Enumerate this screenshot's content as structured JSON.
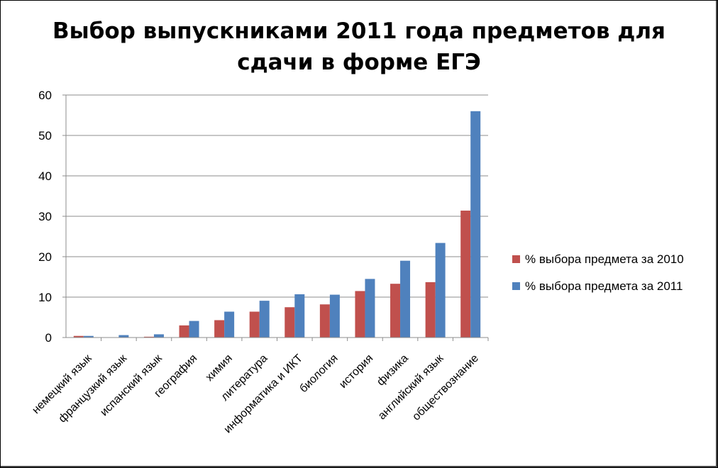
{
  "chart_data": {
    "type": "bar",
    "title_line1": "Выбор выпускниками 2011 года предметов для",
    "title_line2": "сдачи в форме ЕГЭ",
    "categories": [
      "немецкий язык",
      "французкий язык",
      "испанский язык",
      "география",
      "химия",
      "литература",
      "информатика и ИКТ",
      "биология",
      "история",
      "физика",
      "английский язык",
      "обществознание"
    ],
    "series": [
      {
        "name": "% выбора предмета за 2010",
        "color": "#C0504D",
        "values": [
          0.4,
          0.0,
          0.2,
          3.0,
          4.3,
          6.4,
          7.5,
          8.2,
          11.5,
          13.3,
          13.7,
          31.4
        ]
      },
      {
        "name": "% выбора предмета за 2011",
        "color": "#4F81BD",
        "values": [
          0.4,
          0.6,
          0.8,
          4.1,
          6.4,
          9.1,
          10.7,
          10.6,
          14.5,
          19.0,
          23.4,
          56.0
        ]
      }
    ],
    "ylim": [
      0,
      60
    ],
    "yticks": [
      0,
      10,
      20,
      30,
      40,
      50,
      60
    ],
    "grid": true,
    "legend_position": "right"
  }
}
